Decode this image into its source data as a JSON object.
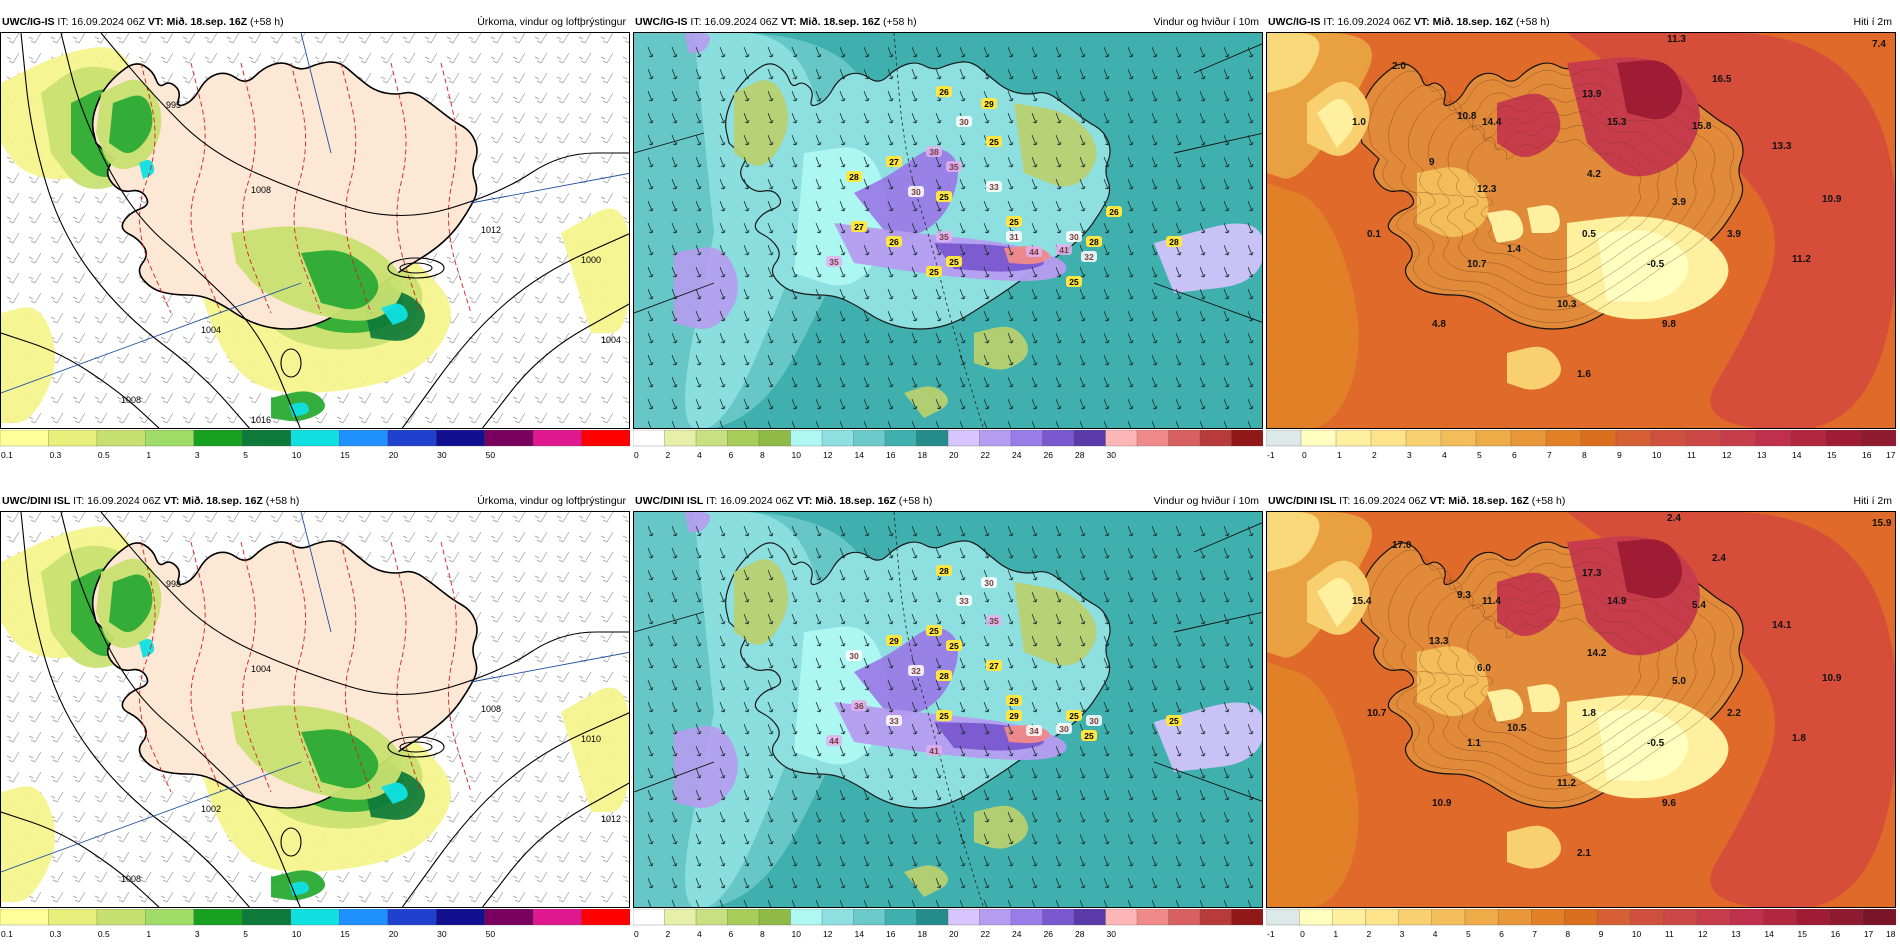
{
  "header_common": {
    "it_text": "IT: 16.09.2024 06Z",
    "vt_text": "VT: Mið. 18.sep. 16Z",
    "lead_text": "(+58 h)"
  },
  "panels": [
    {
      "model": "UWC/IG-IS",
      "title": "Úrkoma, vindur og loftþrýstingur",
      "type": "precip"
    },
    {
      "model": "UWC/IG-IS",
      "title": "Vindur og hviður í 10m",
      "type": "wind"
    },
    {
      "model": "UWC/IG-IS",
      "title": "Hiti í 2m",
      "type": "temp"
    },
    {
      "model": "UWC/DINI ISL",
      "title": "Úrkoma, vindur og loftþrýstingur",
      "type": "precip"
    },
    {
      "model": "UWC/DINI ISL",
      "title": "Vindur og hviður í 10m",
      "type": "wind"
    },
    {
      "model": "UWC/DINI ISL",
      "title": "Hiti í 2m",
      "type": "temp"
    }
  ],
  "colorbars": {
    "precip": {
      "colors": [
        "#ffff9a",
        "#e8f07c",
        "#c8e070",
        "#a0dc68",
        "#18a020",
        "#0e7a3a",
        "#10e0e0",
        "#2090ff",
        "#2040d0",
        "#101090",
        "#7a0060",
        "#e01890",
        "#ff0000"
      ],
      "ticks": [
        "0.1",
        "0.3",
        "0.5",
        "1",
        "3",
        "5",
        "10",
        "15",
        "20",
        "30",
        "50"
      ]
    },
    "wind": {
      "colors": [
        "#ffffff",
        "#e6f0a8",
        "#c8e080",
        "#a8cc58",
        "#90ba48",
        "#aff8f2",
        "#8ee0e0",
        "#6ccaca",
        "#3fb0ae",
        "#248c8a",
        "#d8c4ff",
        "#b69cf0",
        "#9a7ce6",
        "#7a58d0",
        "#5a3aa8",
        "#ffb6b6",
        "#f08a8a",
        "#d86060",
        "#b83a3a",
        "#901818"
      ],
      "ticks": [
        "0",
        "2",
        "4",
        "6",
        "8",
        "10",
        "12",
        "14",
        "16",
        "18",
        "20",
        "22",
        "24",
        "26",
        "28",
        "30"
      ]
    },
    "temp_top": {
      "colors": [
        "#dde8e8",
        "#ffffc0",
        "#fff0a0",
        "#fde38a",
        "#f8d070",
        "#f3be5a",
        "#eeab48",
        "#e89838",
        "#e28028",
        "#dc6e20",
        "#d66034",
        "#d05040",
        "#cc4846",
        "#c63c4a",
        "#c0304c",
        "#b2263e",
        "#a01c34",
        "#8e1a30"
      ],
      "ticks": [
        "-1",
        "0",
        "1",
        "2",
        "3",
        "4",
        "5",
        "6",
        "7",
        "8",
        "9",
        "10",
        "11",
        "12",
        "13",
        "14",
        "15",
        "16",
        "17"
      ]
    },
    "temp_bottom": {
      "colors": [
        "#dde8e8",
        "#ffffc0",
        "#fff0a0",
        "#fde38a",
        "#f8d070",
        "#f3be5a",
        "#eeab48",
        "#e89838",
        "#e28028",
        "#dc6e20",
        "#d66034",
        "#d05040",
        "#cc4846",
        "#c63c4a",
        "#c0304c",
        "#b2263e",
        "#a01c34",
        "#8e1a30",
        "#7a1428"
      ],
      "ticks": [
        "-1",
        "0",
        "1",
        "2",
        "3",
        "4",
        "5",
        "6",
        "7",
        "8",
        "9",
        "10",
        "11",
        "12",
        "13",
        "14",
        "15",
        "16",
        "17",
        "18"
      ]
    }
  },
  "map_labels": {
    "precip_top": [
      "995",
      "1004",
      "1008",
      "1012",
      "1000",
      "1004",
      "1008",
      "1016"
    ],
    "precip_bottom": [
      "998",
      "1002",
      "1004",
      "1008",
      "1010",
      "1012",
      "1008"
    ],
    "wind_top": [
      "26",
      "30",
      "29",
      "25",
      "38",
      "35",
      "33",
      "28",
      "27",
      "30",
      "25",
      "25",
      "26",
      "31",
      "27",
      "35",
      "35",
      "25",
      "44",
      "41",
      "32",
      "30",
      "28",
      "28",
      "25",
      "25",
      "26"
    ],
    "wind_bottom": [
      "28",
      "33",
      "30",
      "35",
      "25",
      "25",
      "27",
      "30",
      "29",
      "32",
      "28",
      "29",
      "33",
      "29",
      "36",
      "25",
      "44",
      "41",
      "34",
      "30",
      "25",
      "25",
      "30",
      "25"
    ],
    "temp_top": [
      "11.3",
      "2.0",
      "16.5",
      "7.4",
      "13.9",
      "1.0",
      "10.8",
      "14.4",
      "15.3",
      "15.8",
      "13.3",
      "9",
      "4.2",
      "12.3",
      "3.9",
      "10.9",
      "0.1",
      "1.4",
      "0.5",
      "3.9",
      "10.7",
      "-0.5",
      "11.2",
      "10.3",
      "4.8",
      "9.8",
      "1.6"
    ],
    "temp_bottom": [
      "2.4",
      "17.0",
      "2.4",
      "15.9",
      "17.3",
      "15.4",
      "9.3",
      "11.4",
      "14.9",
      "5.4",
      "14.1",
      "13.3",
      "14.2",
      "6.0",
      "5.0",
      "10.9",
      "10.7",
      "10.5",
      "1.8",
      "2.2",
      "1.1",
      "-0.5",
      "1.8",
      "11.2",
      "10.9",
      "9.6",
      "2.1"
    ]
  }
}
